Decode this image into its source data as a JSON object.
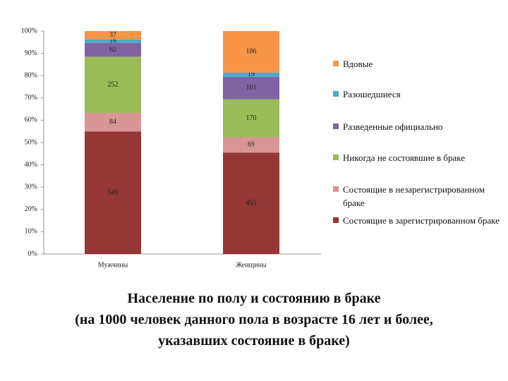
{
  "chart_data": {
    "type": "bar",
    "stacked": true,
    "title": "Население по полу и состоянию в браке\n(на 1000 человек данного пола в возрасте 16 лет и более,\nуказавших состояние в браке)",
    "categories": [
      "Мужчины",
      "Женщины"
    ],
    "ylim": [
      0,
      1000
    ],
    "yticks": [
      {
        "value": 0,
        "label": "0%"
      },
      {
        "value": 100,
        "label": "10%"
      },
      {
        "value": 200,
        "label": "20%"
      },
      {
        "value": 300,
        "label": "30%"
      },
      {
        "value": 400,
        "label": "40%"
      },
      {
        "value": 500,
        "label": "50%"
      },
      {
        "value": 600,
        "label": "60%"
      },
      {
        "value": 700,
        "label": "70%"
      },
      {
        "value": 800,
        "label": "80%"
      },
      {
        "value": 900,
        "label": "90%"
      },
      {
        "value": 1000,
        "label": "100%"
      }
    ],
    "series": [
      {
        "name": "Состоящие в зарегистрированном браке",
        "color": "#953735",
        "values": [
          549,
          455
        ]
      },
      {
        "name": "Состоящие в незарегистрированном браке",
        "color": "#d99694",
        "values": [
          84,
          69
        ]
      },
      {
        "name": "Никогда не состоявшие в браке",
        "color": "#9bbb59",
        "values": [
          252,
          170
        ]
      },
      {
        "name": "Разведенные официально",
        "color": "#8064a2",
        "values": [
          62,
          101
        ]
      },
      {
        "name": "Разошедшиеся",
        "color": "#4bacc6",
        "values": [
          16,
          19
        ]
      },
      {
        "name": "Вдовые",
        "color": "#f79646",
        "values": [
          37,
          186
        ]
      }
    ]
  }
}
